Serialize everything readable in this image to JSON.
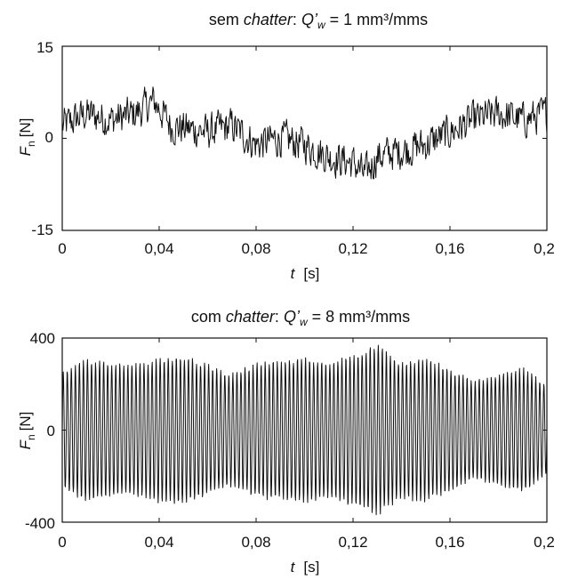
{
  "chart_data": [
    {
      "type": "line",
      "title": {
        "prefix": "sem ",
        "keyword": "chatter",
        "colon": ": ",
        "Q": "Q",
        "prime": "’",
        "sub": "w",
        "value": " = 1 mm³/mms"
      },
      "xlabel": {
        "var": "t",
        "unit": "[s]"
      },
      "ylabel": {
        "var": "F",
        "sub": "n",
        "unit": "[N]"
      },
      "xlim": [
        0,
        0.2
      ],
      "ylim": [
        -15,
        15
      ],
      "xticks": [
        "0",
        "0,04",
        "0,08",
        "0,12",
        "0,16",
        "0,2"
      ],
      "yticks": [
        "15",
        "0",
        "-15"
      ],
      "series": [
        {
          "x": [
            0,
            0.01,
            0.02,
            0.03,
            0.038,
            0.045,
            0.06,
            0.07,
            0.08,
            0.09,
            0.1,
            0.11,
            0.12,
            0.125,
            0.13,
            0.14,
            0.15,
            0.16,
            0.17,
            0.18,
            0.19,
            0.2
          ],
          "y": [
            2,
            4,
            3,
            4,
            6,
            2,
            1,
            2,
            -1,
            0,
            -1,
            -3,
            -4,
            -6,
            -3,
            -2,
            -1,
            1,
            3,
            4,
            3,
            4
          ],
          "amplitude": 4
        }
      ]
    },
    {
      "type": "line",
      "title": {
        "prefix": "com ",
        "keyword": "chatter",
        "colon": ": ",
        "Q": "Q",
        "prime": "’",
        "sub": "w",
        "value": " = 8 mm³/mms"
      },
      "xlabel": {
        "var": "t",
        "unit": "[s]"
      },
      "ylabel": {
        "var": "F",
        "sub": "n",
        "unit": "[N]"
      },
      "xlim": [
        0,
        0.2
      ],
      "ylim": [
        -400,
        400
      ],
      "xticks": [
        "0",
        "0,04",
        "0,08",
        "0,12",
        "0,16",
        "0,2"
      ],
      "yticks": [
        "400",
        "0",
        "-400"
      ],
      "series": [
        {
          "oscillation_hz": 600,
          "envelope_t": [
            0,
            0.01,
            0.02,
            0.03,
            0.04,
            0.05,
            0.06,
            0.07,
            0.08,
            0.09,
            0.1,
            0.11,
            0.12,
            0.13,
            0.14,
            0.15,
            0.16,
            0.17,
            0.18,
            0.19,
            0.2
          ],
          "envelope": [
            260,
            320,
            300,
            290,
            320,
            330,
            290,
            250,
            300,
            310,
            320,
            300,
            340,
            380,
            300,
            320,
            270,
            220,
            250,
            280,
            200
          ]
        }
      ]
    }
  ]
}
